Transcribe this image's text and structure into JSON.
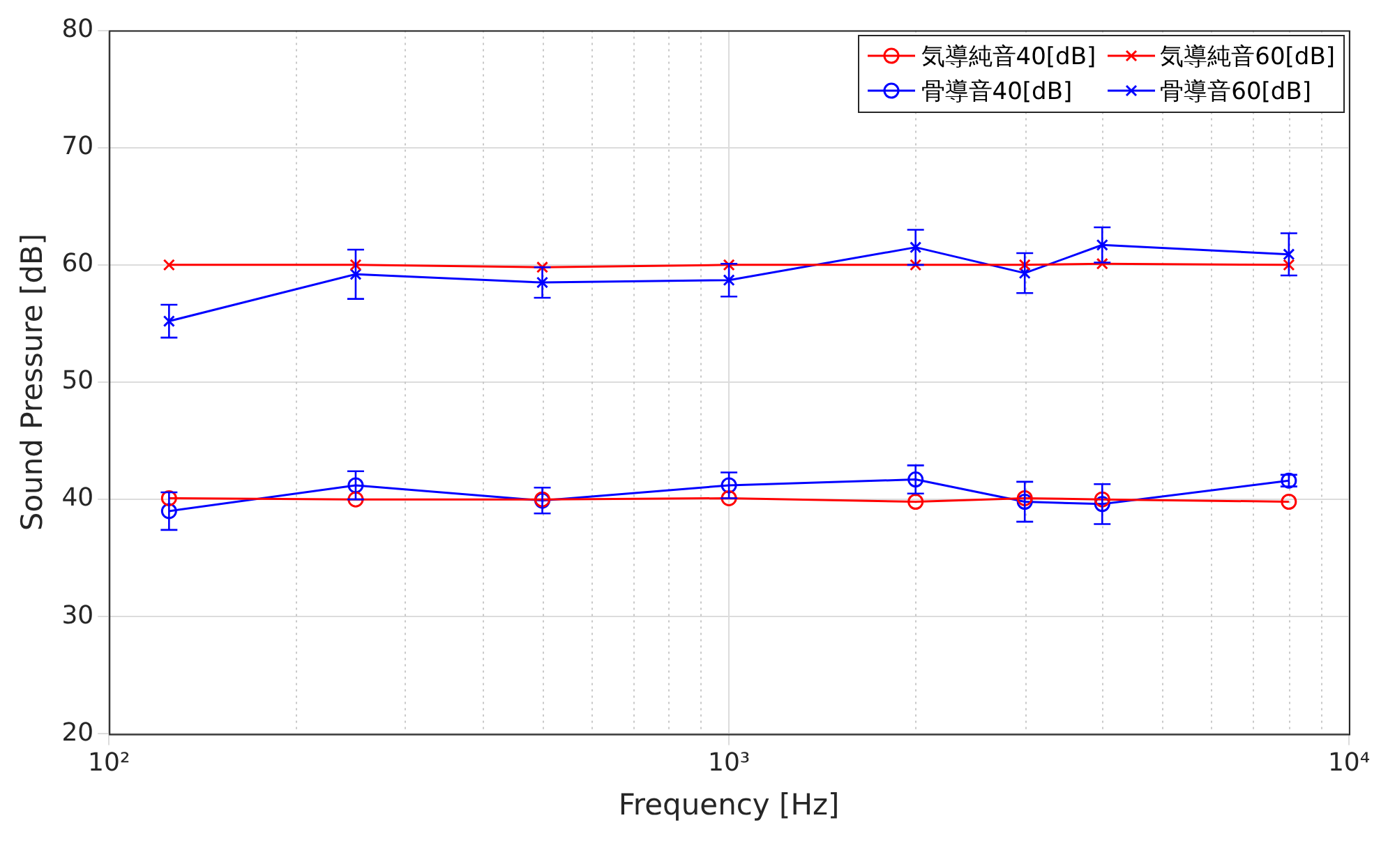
{
  "chart_data": {
    "type": "line",
    "xlabel": "Frequency [Hz]",
    "ylabel": "Sound Pressure [dB]",
    "log": "x",
    "x": [
      125,
      250,
      500,
      1000,
      2000,
      3000,
      4000,
      8000
    ],
    "xlim": [
      100,
      10000
    ],
    "xticks": [
      {
        "value": 100,
        "label": "10²"
      },
      {
        "value": 1000,
        "label": "10³"
      },
      {
        "value": 10000,
        "label": "10⁴"
      }
    ],
    "ylim": [
      20,
      80
    ],
    "yticks": [
      20,
      30,
      40,
      50,
      60,
      70,
      80
    ],
    "grid": true,
    "legend": "top right",
    "line_style": "solid",
    "series": [
      {
        "name": "気導純音40[dB]",
        "color": "#ff0000",
        "marker": "circle",
        "values": [
          40.1,
          40,
          40,
          40.1,
          39.8,
          40.1,
          40,
          39.8
        ]
      },
      {
        "name": "気導純音60[dB]",
        "color": "#ff0000",
        "marker": "cross",
        "values": [
          60,
          60,
          59.8,
          60,
          60,
          60,
          60.1,
          60
        ]
      },
      {
        "name": "骨導音40[dB]",
        "color": "#0000ff",
        "marker": "circle",
        "values": [
          39,
          41.2,
          39.9,
          41.2,
          41.7,
          39.8,
          39.6,
          41.6
        ],
        "errors": [
          1.6,
          1.2,
          1.1,
          1.1,
          1.2,
          1.7,
          1.7,
          0.5
        ]
      },
      {
        "name": "骨導音60[dB]",
        "color": "#0000ff",
        "marker": "cross",
        "values": [
          55.2,
          59.2,
          58.5,
          58.7,
          61.5,
          59.3,
          61.7,
          60.9
        ],
        "errors": [
          1.4,
          2.1,
          1.3,
          1.4,
          1.5,
          1.7,
          1.5,
          1.8
        ]
      }
    ]
  }
}
